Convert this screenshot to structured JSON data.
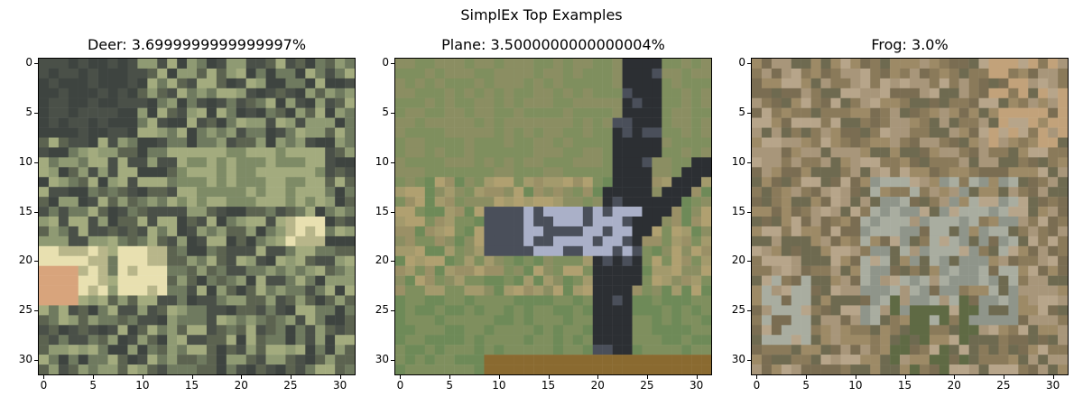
{
  "figure": {
    "suptitle": "SimplEx Top Examples"
  },
  "panels": [
    {
      "title": "Deer: 3.6999999999999997%",
      "image": "deer-photo",
      "palette": [
        "#4a5048",
        "#6f7a5f",
        "#8f9a73",
        "#5c6350",
        "#a3ab7e",
        "#3e4440",
        "#b8b68a",
        "#e8e0b0",
        "#d8a47c",
        "#7e8b66"
      ]
    },
    {
      "title": "Plane: 3.5000000000000004%",
      "image": "plane-photo",
      "palette": [
        "#8b8e62",
        "#9a9066",
        "#7f8f5e",
        "#a39a6c",
        "#6e8a58",
        "#b0a070",
        "#2c2f33",
        "#4a4f5a",
        "#aab0c8",
        "#8a6a30"
      ]
    },
    {
      "title": "Frog: 3.0%",
      "image": "frog-photo",
      "palette": [
        "#8a7a5a",
        "#9d8a66",
        "#7a6d52",
        "#a8967a",
        "#6e6a50",
        "#b7a58a",
        "#8f958a",
        "#a9ada0",
        "#5f6a44",
        "#c2a27a"
      ]
    }
  ],
  "axes": {
    "yticks": [
      "0",
      "5",
      "10",
      "15",
      "20",
      "25",
      "30"
    ],
    "xticks": [
      "0",
      "5",
      "10",
      "15",
      "20",
      "25",
      "30"
    ]
  }
}
